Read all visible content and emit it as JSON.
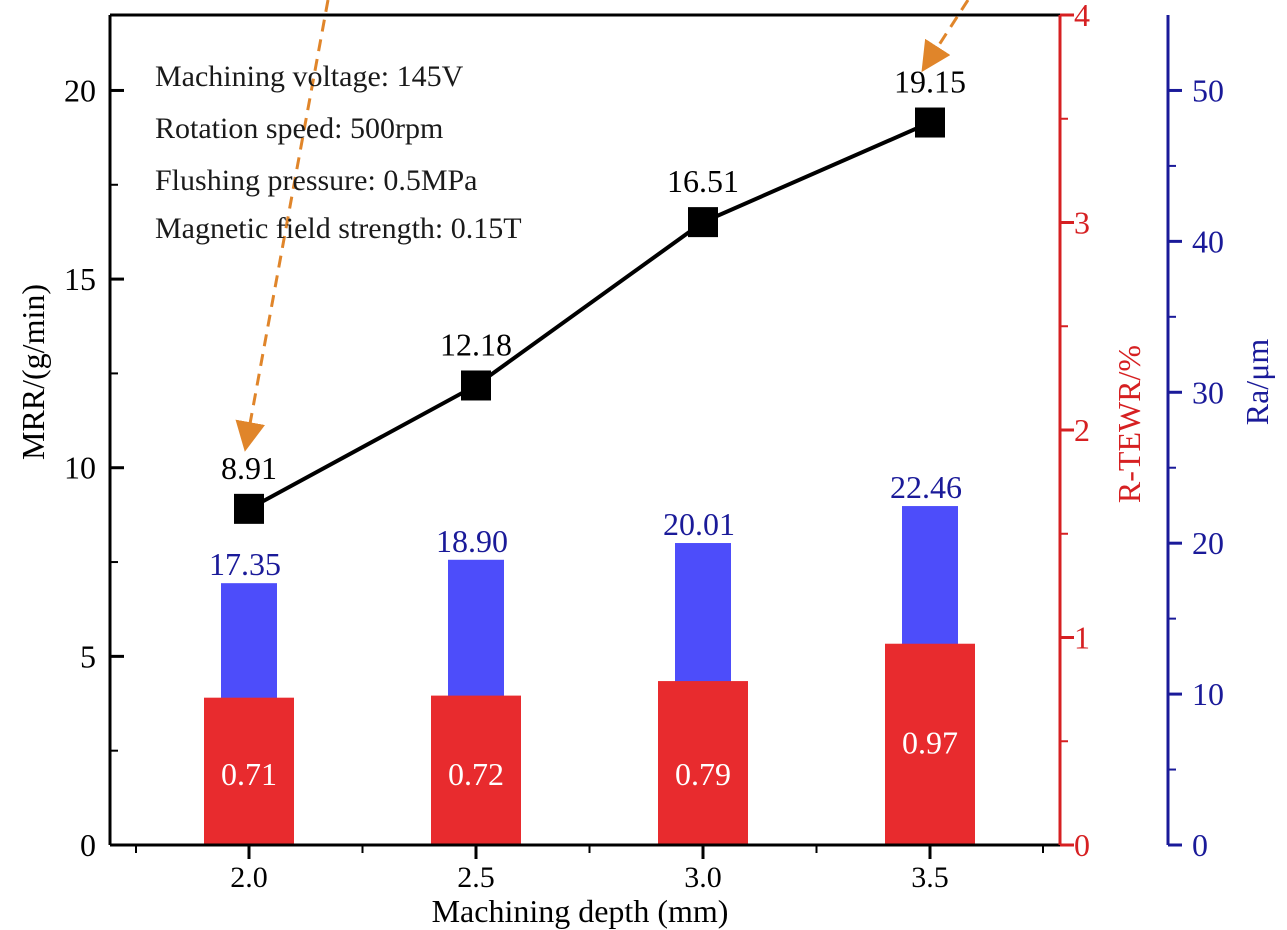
{
  "chart_data": {
    "type": "bar",
    "xlabel": "Machining depth (mm)",
    "categories": [
      "2.0",
      "2.5",
      "3.0",
      "3.5"
    ],
    "axes": {
      "left": {
        "label": "MRR/(g/min)",
        "ylim": [
          0,
          22
        ],
        "ticks": [
          0,
          5,
          10,
          15,
          20
        ],
        "color": "#000000"
      },
      "right_inner": {
        "label": "R-TEWR/%",
        "ylim": [
          0,
          4
        ],
        "ticks": [
          0,
          1,
          2,
          3,
          4
        ],
        "color": "#d62022"
      },
      "right_outer": {
        "label": "Ra/μm",
        "ylim": [
          0,
          55
        ],
        "ticks": [
          0,
          10,
          20,
          30,
          40,
          50
        ],
        "color": "#1a1a99"
      }
    },
    "series": [
      {
        "key": "mrr",
        "type": "line",
        "axis": "left",
        "values": [
          8.91,
          12.18,
          16.51,
          19.15
        ],
        "labels": [
          "8.91",
          "12.18",
          "16.51",
          "19.15"
        ],
        "color": "#000000"
      },
      {
        "key": "ra",
        "type": "bar",
        "axis": "right_outer",
        "values": [
          17.35,
          18.9,
          20.01,
          22.46
        ],
        "labels": [
          "17.35",
          "18.90",
          "20.01",
          "22.46"
        ],
        "color": "#4d4dfa",
        "label_color": "#1a1a99"
      },
      {
        "key": "tewr",
        "type": "bar",
        "axis": "right_inner",
        "values": [
          0.71,
          0.72,
          0.79,
          0.97
        ],
        "labels": [
          "0.71",
          "0.72",
          "0.79",
          "0.97"
        ],
        "color": "#e82b2e",
        "label_color": "#ffffff"
      }
    ],
    "annotations": [
      "Machining voltage: 145V",
      "Rotation speed: 500rpm",
      "Flushing pressure: 0.5MPa",
      "Magnetic field strength: 0.15T"
    ],
    "arrow_color": "#e0852a",
    "grid": false
  }
}
